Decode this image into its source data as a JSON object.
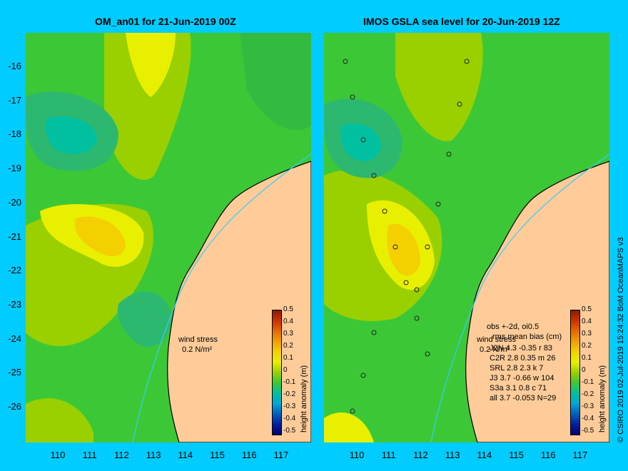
{
  "left_panel": {
    "title": "OM_an01 for 21-Jun-2019 00Z",
    "wind_label": "wind stress",
    "wind_scale": "0.2 N/m²"
  },
  "right_panel": {
    "title": "IMOS GSLA sea level  for 20-Jun-2019 12Z",
    "wind_label": "wind stress",
    "wind_scale": "0.2 N/m²",
    "stats": {
      "header": "obs +-2d, oi0.5",
      "columns": "rms   mean   bias (cm)",
      "rows": [
        "J2N   4.3 -0.35 r 83",
        "C2R   2.8 0.35 m 26",
        "SRL   2.8 2.3 k 7",
        "J3    3.7 -0.66 w 104",
        "S3a   3.1 0.8 c 71",
        "all   3.7 -0.053 N=29"
      ]
    }
  },
  "colorbar": {
    "title": "height anomaly (m)",
    "labels": [
      "0.5",
      "0.4",
      "0.3",
      "0.2",
      "0.1",
      "0",
      "-0.1",
      "-0.2",
      "-0.3",
      "-0.4",
      "-0.5"
    ],
    "colors": [
      "#8b1a00",
      "#cc3300",
      "#e66a00",
      "#f2a000",
      "#f5d000",
      "#e8f000",
      "#9ad000",
      "#3cc836",
      "#00c0a0",
      "#00a8d8",
      "#0060c0",
      "#0020a0",
      "#000070"
    ]
  },
  "axes": {
    "y_ticks": [
      "-16",
      "-17",
      "-18",
      "-19",
      "-20",
      "-21",
      "-22",
      "-23",
      "-24",
      "-25",
      "-26"
    ],
    "x_ticks": [
      "110",
      "111",
      "112",
      "113",
      "114",
      "115",
      "116",
      "117"
    ]
  },
  "credit": "© CSIRO 2019   02-Jul-2019 15:24:32 BoM OceanMAPS v3",
  "colors": {
    "background": "#00ccff",
    "land": "#ffcc99",
    "coast": "#000000",
    "isobath": "#33ccff"
  }
}
